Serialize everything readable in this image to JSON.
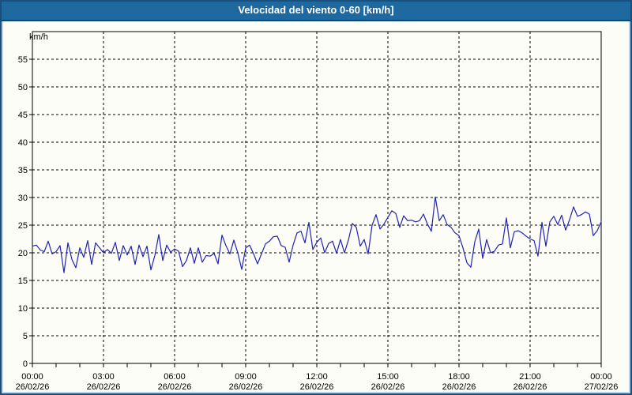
{
  "window": {
    "title": "Velocidad del viento 0-60 [km/h]"
  },
  "colors": {
    "titlebar_bg": "#1f69a1",
    "titlebar_border": "#12486f",
    "titlebar_text": "#ffffff",
    "window_frame": "#b9d3ea",
    "outer_border": "#1b4e7a",
    "panel_bg": "#fdfdf8",
    "axis_and_grid": "#000000",
    "series_line": "#2222b2"
  },
  "chart_data": {
    "type": "line",
    "title": "Velocidad del viento 0-60 [km/h]",
    "unit_label": "km/h",
    "ylim": [
      0,
      60
    ],
    "y_tick_step": 5,
    "y_ticks": [
      0,
      5,
      10,
      15,
      20,
      25,
      30,
      35,
      40,
      45,
      50,
      55
    ],
    "grid": "dashed",
    "legend": "none",
    "x_span_hours": 24,
    "sample_interval_minutes": 10,
    "x_start": "26/02/26 00:00",
    "x_end": "27/02/26 00:00",
    "x_ticks": [
      {
        "time": "00:00",
        "date": "26/02/26"
      },
      {
        "time": "03:00",
        "date": "26/02/26"
      },
      {
        "time": "06:00",
        "date": "26/02/26"
      },
      {
        "time": "09:00",
        "date": "26/02/26"
      },
      {
        "time": "12:00",
        "date": "26/02/26"
      },
      {
        "time": "15:00",
        "date": "26/02/26"
      },
      {
        "time": "18:00",
        "date": "26/02/26"
      },
      {
        "time": "21:00",
        "date": "26/02/26"
      },
      {
        "time": "00:00",
        "date": "27/02/26"
      }
    ],
    "values": [
      21.2,
      21.4,
      20.5,
      20.2,
      22.1,
      19.8,
      20.2,
      21.3,
      16.4,
      21.8,
      18.8,
      17.3,
      20.9,
      19.2,
      22.2,
      17.9,
      21.8,
      20.9,
      20.0,
      20.6,
      19.9,
      21.9,
      18.6,
      21.3,
      19.6,
      21.2,
      17.9,
      21.4,
      19.3,
      21.2,
      16.9,
      19.5,
      23.3,
      18.6,
      21.4,
      20.1,
      20.7,
      20.3,
      17.5,
      18.6,
      20.9,
      18.1,
      20.9,
      18.3,
      19.5,
      19.4,
      19.9,
      18.0,
      23.2,
      21.3,
      19.8,
      22.3,
      20.0,
      17.0,
      20.9,
      21.4,
      19.8,
      18.0,
      19.8,
      21.6,
      22.1,
      22.9,
      23.0,
      21.3,
      21.0,
      18.3,
      21.4,
      23.6,
      23.9,
      21.8,
      25.5,
      20.6,
      21.9,
      22.7,
      20.0,
      21.7,
      22.1,
      19.9,
      22.4,
      20.0,
      22.3,
      25.3,
      24.6,
      21.2,
      22.4,
      19.8,
      25.0,
      26.9,
      24.3,
      25.2,
      26.4,
      27.6,
      27.1,
      24.6,
      26.7,
      25.8,
      25.9,
      25.6,
      25.8,
      27.0,
      25.2,
      23.9,
      30.1,
      25.8,
      26.9,
      25.1,
      24.6,
      23.6,
      23.1,
      20.9,
      18.2,
      17.4,
      22.0,
      24.3,
      19.0,
      22.4,
      20.0,
      20.3,
      21.4,
      21.6,
      26.3,
      20.9,
      23.8,
      24.0,
      23.6,
      23.0,
      22.5,
      22.2,
      19.4,
      25.5,
      21.2,
      25.6,
      26.6,
      25.1,
      26.8,
      24.1,
      26.0,
      28.3,
      26.6,
      26.9,
      27.4,
      27.0,
      23.1,
      24.0,
      25.6
    ]
  }
}
